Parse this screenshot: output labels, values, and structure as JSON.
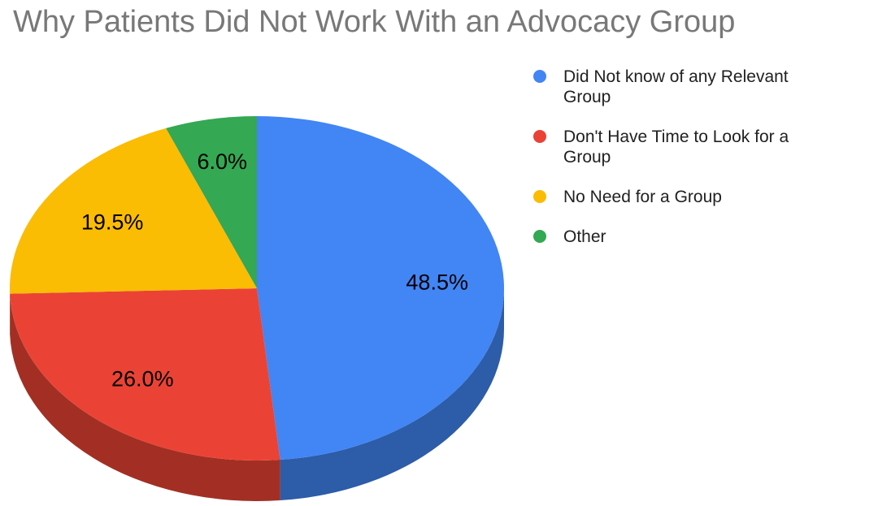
{
  "page": {
    "background": "#ffffff"
  },
  "chart_data": {
    "type": "pie",
    "title": "Why Patients Did Not Work With an Advocacy Group",
    "title_color": "#787878",
    "effect": "3d",
    "start_angle_deg": 0,
    "direction": "clockwise",
    "legend_position": "right",
    "label_format": "percent",
    "label_text_color": "#000000",
    "slices": [
      {
        "label": "Did Not know of any Relevant Group",
        "value": 48.5,
        "display": "48.5%",
        "color": "#4285F4",
        "side_color": "#2D5CA8"
      },
      {
        "label": "Don't Have Time to Look for a Group",
        "value": 26.0,
        "display": "26.0%",
        "color": "#EA4335",
        "side_color": "#A32F24"
      },
      {
        "label": "No Need for a Group",
        "value": 19.5,
        "display": "19.5%",
        "color": "#FBBC04",
        "side_color": "#B08503"
      },
      {
        "label": "Other",
        "value": 6.0,
        "display": "6.0%",
        "color": "#34A853",
        "side_color": "#24753A"
      }
    ]
  }
}
